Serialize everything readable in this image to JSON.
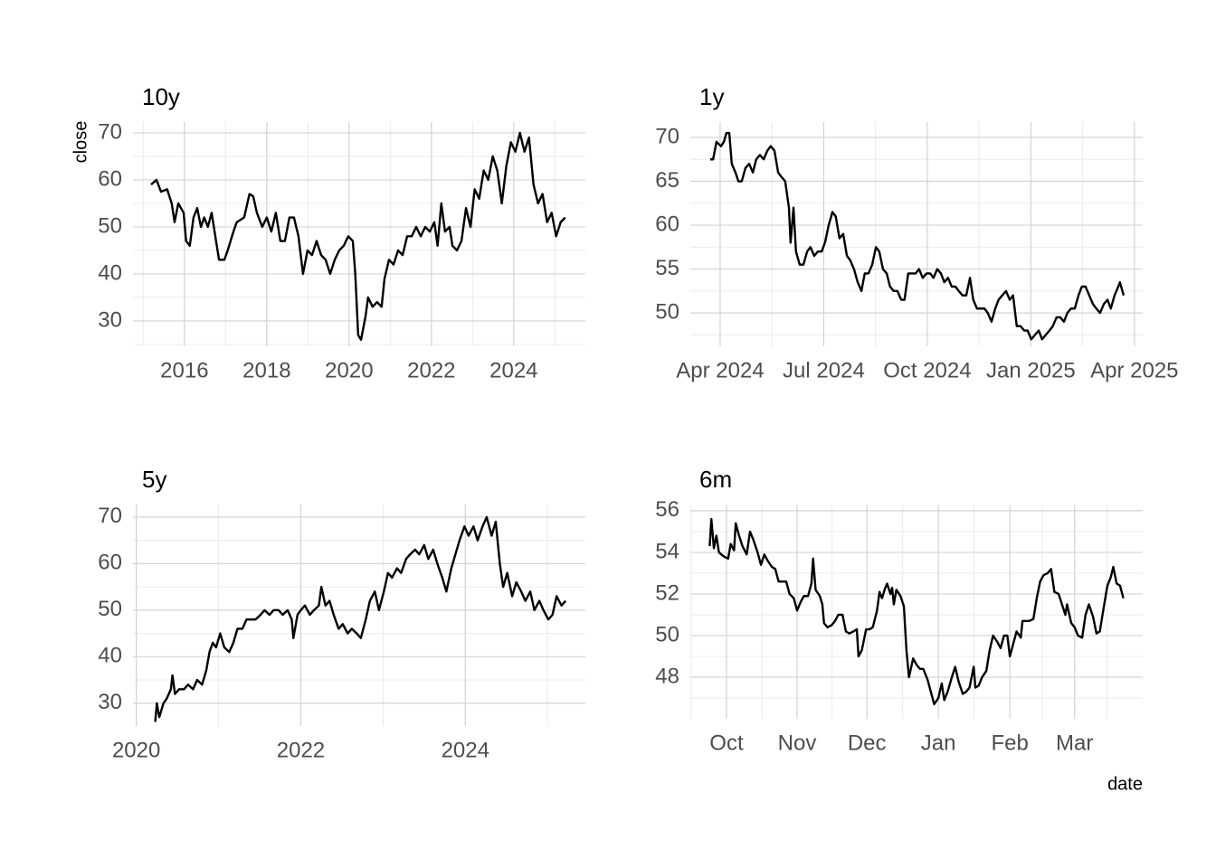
{
  "chart_data": [
    {
      "type": "line",
      "title": "10y",
      "ylabel": "close",
      "color": "#000000",
      "x": [
        2015.19,
        2015.32,
        2015.43,
        2015.58,
        2015.69,
        2015.76,
        2015.85,
        2015.98,
        2016.04,
        2016.13,
        2016.22,
        2016.31,
        2016.4,
        2016.48,
        2016.57,
        2016.66,
        2016.75,
        2016.84,
        2016.97,
        2017.05,
        2017.19,
        2017.27,
        2017.45,
        2017.58,
        2017.67,
        2017.76,
        2017.89,
        2018.0,
        2018.11,
        2018.22,
        2018.33,
        2018.44,
        2018.55,
        2018.66,
        2018.77,
        2018.88,
        2018.99,
        2019.1,
        2019.21,
        2019.32,
        2019.43,
        2019.54,
        2019.65,
        2019.76,
        2019.87,
        2019.98,
        2020.09,
        2020.15,
        2020.22,
        2020.29,
        2020.4,
        2020.46,
        2020.57,
        2020.68,
        2020.79,
        2020.86,
        2020.97,
        2021.08,
        2021.19,
        2021.3,
        2021.41,
        2021.52,
        2021.63,
        2021.74,
        2021.85,
        2021.96,
        2022.07,
        2022.15,
        2022.24,
        2022.33,
        2022.44,
        2022.51,
        2022.62,
        2022.73,
        2022.84,
        2022.95,
        2023.05,
        2023.16,
        2023.27,
        2023.38,
        2023.49,
        2023.6,
        2023.71,
        2023.82,
        2023.93,
        2024.04,
        2024.15,
        2024.26,
        2024.37,
        2024.48,
        2024.59,
        2024.7,
        2024.81,
        2024.92,
        2025.03,
        2025.14,
        2025.25
      ],
      "values": [
        59,
        60,
        57.5,
        58,
        55,
        51,
        55,
        53,
        47,
        46,
        52,
        54,
        50,
        52,
        50,
        53,
        48,
        43,
        43,
        45,
        49,
        51,
        52,
        57,
        56.5,
        53,
        50,
        52,
        49,
        53,
        47,
        47,
        52,
        52,
        48,
        40,
        45,
        44,
        47,
        44,
        43,
        40,
        43,
        45,
        46,
        48,
        47,
        40,
        27,
        26,
        31,
        35,
        33,
        34,
        33,
        39,
        43,
        42,
        45,
        44,
        48,
        48,
        50,
        48,
        50,
        49,
        51,
        46,
        55,
        49,
        50,
        46,
        45,
        47,
        54,
        50,
        58,
        56,
        62,
        60,
        65,
        62,
        55,
        63,
        68,
        66,
        70,
        66,
        69,
        59,
        55,
        57,
        51,
        53,
        48,
        51,
        52
      ],
      "xlim": [
        2014.75,
        2025.74
      ],
      "xticks": [
        2016,
        2018,
        2020,
        2022,
        2024
      ],
      "ylim": [
        24.6,
        72.3
      ],
      "yticks": [
        30,
        40,
        50,
        60,
        70
      ],
      "grid": true
    },
    {
      "type": "line",
      "title": "1y",
      "color": "#000000",
      "x": [
        2024.226,
        2024.233,
        2024.241,
        2024.252,
        2024.259,
        2024.265,
        2024.272,
        2024.278,
        2024.287,
        2024.294,
        2024.302,
        2024.311,
        2024.32,
        2024.329,
        2024.337,
        2024.346,
        2024.355,
        2024.364,
        2024.372,
        2024.381,
        2024.39,
        2024.398,
        2024.407,
        2024.416,
        2024.42,
        2024.427,
        2024.433,
        2024.442,
        2024.451,
        2024.46,
        2024.468,
        2024.477,
        2024.486,
        2024.495,
        2024.503,
        2024.512,
        2024.521,
        2024.529,
        2024.538,
        2024.547,
        2024.556,
        2024.564,
        2024.573,
        2024.582,
        2024.591,
        2024.599,
        2024.608,
        2024.617,
        2024.626,
        2024.634,
        2024.643,
        2024.652,
        2024.66,
        2024.669,
        2024.678,
        2024.687,
        2024.695,
        2024.704,
        2024.713,
        2024.722,
        2024.73,
        2024.739,
        2024.748,
        2024.757,
        2024.765,
        2024.774,
        2024.783,
        2024.791,
        2024.8,
        2024.809,
        2024.818,
        2024.826,
        2024.835,
        2024.844,
        2024.853,
        2024.861,
        2024.87,
        2024.879,
        2024.888,
        2024.896,
        2024.905,
        2024.914,
        2024.922,
        2024.931,
        2024.94,
        2024.949,
        2024.957,
        2024.966,
        2024.975,
        2024.984,
        2024.992,
        2025.001,
        2025.01,
        2025.019,
        2025.027,
        2025.036,
        2025.045,
        2025.053,
        2025.062,
        2025.071,
        2025.08,
        2025.088,
        2025.097,
        2025.106,
        2025.115,
        2025.123,
        2025.132,
        2025.141,
        2025.15,
        2025.158,
        2025.167,
        2025.176,
        2025.185,
        2025.193,
        2025.202,
        2025.211,
        2025.215,
        2025.224
      ],
      "values": [
        67.5,
        67.5,
        69.5,
        69,
        69.5,
        70.5,
        70.5,
        67,
        66,
        65,
        65,
        66.5,
        67,
        66,
        67.5,
        68,
        67.5,
        68.5,
        69,
        68.5,
        66,
        65.5,
        65,
        62,
        58,
        62,
        57,
        55.5,
        55.5,
        57,
        57.5,
        56.5,
        57,
        57,
        58,
        60,
        61.5,
        61,
        58.5,
        59,
        56.5,
        56,
        55,
        53.5,
        52.5,
        54.5,
        54.5,
        55.5,
        57.5,
        57,
        55,
        54.5,
        53,
        52.5,
        52.5,
        51.5,
        51.5,
        54.5,
        54.5,
        54.5,
        55,
        54,
        54.5,
        54.5,
        54,
        55,
        54.5,
        53.5,
        54,
        53,
        53,
        52.5,
        52,
        52,
        54,
        51.5,
        50.5,
        50.5,
        50.5,
        50,
        49,
        50.5,
        51.5,
        52,
        52.5,
        51.5,
        52,
        48.5,
        48.5,
        48,
        48,
        47,
        47.5,
        48,
        47,
        47.5,
        48,
        48.5,
        49.5,
        49.5,
        49,
        50,
        50.5,
        50.5,
        52,
        53,
        53,
        52,
        51,
        50.5,
        50,
        51,
        51.5,
        50.5,
        52,
        53,
        53.5,
        52
      ],
      "xlim": [
        2024.178,
        2025.27
      ],
      "xticks": [
        {
          "value": 2024.25,
          "label": "Apr 2024"
        },
        {
          "value": 2024.5,
          "label": "Jul 2024"
        },
        {
          "value": 2024.75,
          "label": "Oct 2024"
        },
        {
          "value": 2025.0,
          "label": "Jan 2025"
        },
        {
          "value": 2025.25,
          "label": "Apr 2025"
        }
      ],
      "ylim": [
        46.2,
        71.75
      ],
      "yticks": [
        50,
        55,
        60,
        65,
        70
      ],
      "grid": true
    },
    {
      "type": "line",
      "title": "5y",
      "color": "#000000",
      "x": [
        2020.23,
        2020.25,
        2020.28,
        2020.33,
        2020.37,
        2020.42,
        2020.44,
        2020.47,
        2020.52,
        2020.58,
        2020.63,
        2020.69,
        2020.74,
        2020.8,
        2020.85,
        2020.89,
        2020.93,
        2020.97,
        2021.02,
        2021.07,
        2021.13,
        2021.18,
        2021.23,
        2021.29,
        2021.34,
        2021.4,
        2021.45,
        2021.51,
        2021.56,
        2021.62,
        2021.67,
        2021.73,
        2021.78,
        2021.84,
        2021.89,
        2021.91,
        2021.96,
        2022.0,
        2022.05,
        2022.11,
        2022.16,
        2022.22,
        2022.25,
        2022.3,
        2022.35,
        2022.4,
        2022.46,
        2022.51,
        2022.57,
        2022.62,
        2022.68,
        2022.73,
        2022.79,
        2022.84,
        2022.9,
        2022.95,
        2023.01,
        2023.06,
        2023.11,
        2023.17,
        2023.22,
        2023.28,
        2023.33,
        2023.39,
        2023.44,
        2023.5,
        2023.55,
        2023.61,
        2023.66,
        2023.72,
        2023.77,
        2023.83,
        2023.88,
        2023.93,
        2023.99,
        2024.04,
        2024.1,
        2024.15,
        2024.21,
        2024.26,
        2024.32,
        2024.37,
        2024.42,
        2024.46,
        2024.51,
        2024.57,
        2024.62,
        2024.68,
        2024.73,
        2024.79,
        2024.84,
        2024.9,
        2024.95,
        2025.01,
        2025.06,
        2025.11,
        2025.17,
        2025.22
      ],
      "values": [
        26,
        30,
        27,
        30,
        31,
        33,
        36,
        32,
        33,
        33,
        34,
        33,
        35,
        34,
        37,
        41,
        43,
        42,
        45,
        42,
        41,
        43,
        46,
        46,
        48,
        48,
        48,
        49,
        50,
        49,
        50,
        50,
        49,
        50,
        48,
        44,
        49,
        50,
        51,
        49,
        50,
        51,
        55,
        51,
        52,
        49,
        46,
        47,
        45,
        46,
        45,
        44,
        48,
        52,
        54,
        50,
        54,
        58,
        57,
        59,
        58,
        61,
        62,
        63,
        62,
        64,
        61,
        63,
        60,
        57,
        54,
        59,
        62,
        65,
        68,
        66,
        68,
        65,
        68,
        70,
        66,
        69,
        60,
        55,
        58,
        53,
        56,
        54,
        52,
        54,
        50,
        52,
        50,
        48,
        49,
        53,
        51,
        52
      ],
      "xlim": [
        2019.96,
        2025.46
      ],
      "xticks": [
        2020,
        2022,
        2024
      ],
      "ylim": [
        25.1,
        72.7
      ],
      "yticks": [
        30,
        40,
        50,
        60,
        70
      ],
      "grid": true
    },
    {
      "type": "line",
      "title": "6m",
      "xlabel": "date",
      "color": "#000000",
      "x": [
        2024.728,
        2024.73,
        2024.733,
        2024.736,
        2024.739,
        2024.745,
        2024.75,
        2024.753,
        2024.757,
        2024.759,
        2024.763,
        2024.767,
        2024.772,
        2024.776,
        2024.78,
        2024.785,
        2024.789,
        2024.793,
        2024.797,
        2024.802,
        2024.806,
        2024.81,
        2024.815,
        2024.819,
        2024.823,
        2024.828,
        2024.832,
        2024.836,
        2024.84,
        2024.845,
        2024.849,
        2024.851,
        2024.854,
        2024.859,
        2024.862,
        2024.864,
        2024.868,
        2024.873,
        2024.877,
        2024.881,
        2024.886,
        2024.89,
        2024.894,
        2024.899,
        2024.903,
        2024.905,
        2024.909,
        2024.914,
        2024.918,
        2024.922,
        2024.927,
        2024.93,
        2024.933,
        2024.936,
        2024.939,
        2024.943,
        2024.945,
        2024.947,
        2024.95,
        2024.955,
        2024.959,
        2024.962,
        2024.965,
        2024.97,
        2024.974,
        2024.978,
        2024.982,
        2024.987,
        2024.991,
        2024.995,
        2025.0,
        2025.004,
        2025.007,
        2025.011,
        2025.016,
        2025.02,
        2025.024,
        2025.029,
        2025.033,
        2025.037,
        2025.042,
        2025.044,
        2025.048,
        2025.052,
        2025.057,
        2025.061,
        2025.065,
        2025.07,
        2025.074,
        2025.078,
        2025.082,
        2025.085,
        2025.089,
        2025.093,
        2025.098,
        2025.1,
        2025.104,
        2025.108,
        2025.113,
        2025.117,
        2025.121,
        2025.125,
        2025.13,
        2025.134,
        2025.138,
        2025.143,
        2025.147,
        2025.151,
        2025.153,
        2025.158,
        2025.162,
        2025.166,
        2025.171,
        2025.175,
        2025.179,
        2025.184,
        2025.188,
        2025.192,
        2025.196,
        2025.201,
        2025.205,
        2025.208,
        2025.212,
        2025.216,
        2025.22
      ],
      "values": [
        54.3,
        55.6,
        54.2,
        54.8,
        54,
        53.8,
        53.7,
        54.4,
        54.1,
        55.4,
        54.8,
        54.3,
        53.9,
        55,
        54.6,
        54,
        53.4,
        53.9,
        53.6,
        53.3,
        53.2,
        52.6,
        52.6,
        52.6,
        52,
        51.8,
        51.2,
        51.6,
        51.9,
        51.9,
        52.5,
        53.7,
        52.2,
        51.9,
        51.5,
        50.6,
        50.4,
        50.5,
        50.7,
        51,
        51,
        50.2,
        50.1,
        50.2,
        50.3,
        49,
        49.3,
        50.3,
        50.3,
        50.4,
        51.2,
        52.1,
        51.8,
        52.2,
        52.5,
        52,
        52.3,
        51.5,
        52.2,
        51.9,
        51.4,
        49.3,
        48,
        48.9,
        48.6,
        48.4,
        48.4,
        47.9,
        47.3,
        46.7,
        47,
        47.7,
        46.9,
        47.3,
        48,
        48.5,
        47.8,
        47.2,
        47.3,
        47.5,
        48.5,
        47.5,
        47.6,
        48,
        48.3,
        49.3,
        50,
        49.7,
        49.4,
        50,
        50,
        49,
        49.6,
        50.2,
        49.9,
        50.7,
        50.7,
        50.7,
        50.8,
        51.8,
        52.6,
        52.9,
        53,
        53.2,
        52.1,
        52,
        51.5,
        51,
        51.5,
        50.6,
        50.4,
        50,
        49.9,
        51,
        51.5,
        50.9,
        50.1,
        50.2,
        51.2,
        52.4,
        52.8,
        53.3,
        52.5,
        52.4,
        51.8
      ],
      "xlim": [
        2024.705,
        2025.243
      ],
      "xticks": [
        {
          "value": 2024.748,
          "label": "Oct"
        },
        {
          "value": 2024.832,
          "label": "Nov"
        },
        {
          "value": 2024.915,
          "label": "Dec"
        },
        {
          "value": 2025.0,
          "label": "Jan"
        },
        {
          "value": 2025.085,
          "label": "Feb"
        },
        {
          "value": 2025.162,
          "label": "Mar"
        }
      ],
      "ylim": [
        46.0,
        56.3
      ],
      "yticks": [
        48,
        50,
        52,
        54,
        56
      ],
      "grid": true
    }
  ]
}
